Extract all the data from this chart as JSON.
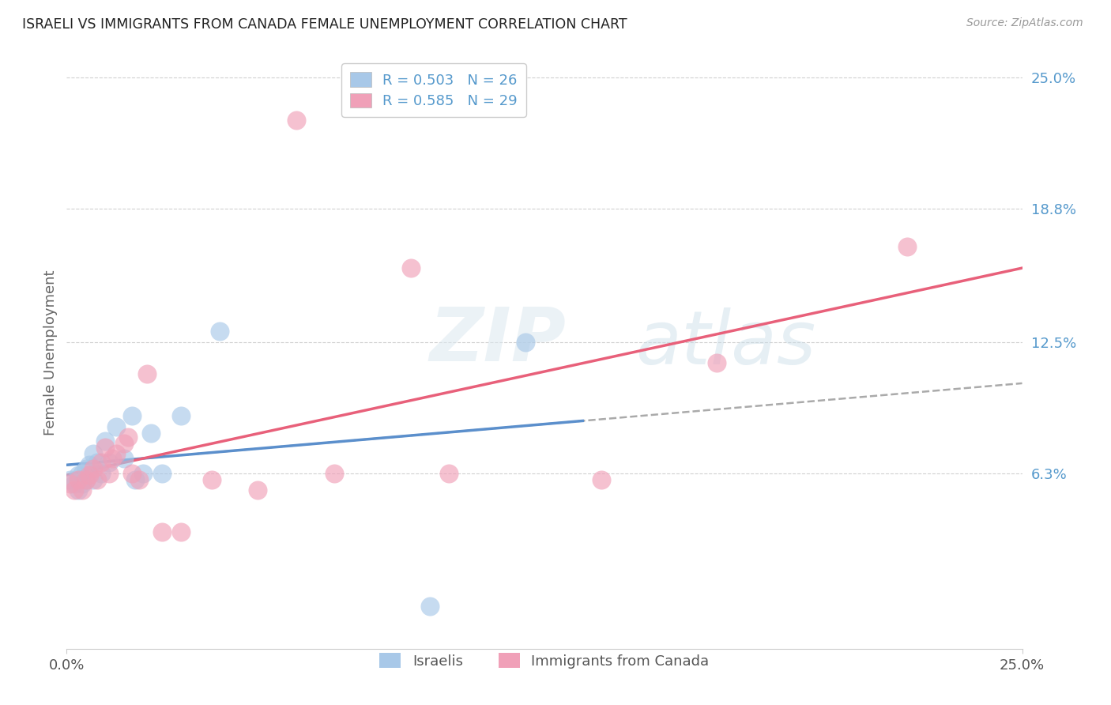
{
  "title": "ISRAELI VS IMMIGRANTS FROM CANADA FEMALE UNEMPLOYMENT CORRELATION CHART",
  "source": "Source: ZipAtlas.com",
  "ylabel": "Female Unemployment",
  "xlim": [
    0.0,
    0.25
  ],
  "ylim": [
    -0.02,
    0.26
  ],
  "xticks": [
    0.0,
    0.25
  ],
  "xtick_labels": [
    "0.0%",
    "25.0%"
  ],
  "yticks_right": [
    0.063,
    0.125,
    0.188,
    0.25
  ],
  "ytick_labels_right": [
    "6.3%",
    "12.5%",
    "18.8%",
    "25.0%"
  ],
  "hlines": [
    0.063,
    0.125,
    0.188,
    0.25
  ],
  "legend_entries": [
    {
      "label": "R = 0.503   N = 26",
      "color": "#aac4e8"
    },
    {
      "label": "R = 0.585   N = 29",
      "color": "#f4a0b0"
    }
  ],
  "legend_bottom": [
    {
      "label": "Israelis",
      "color": "#aac4e8"
    },
    {
      "label": "Immigrants from Canada",
      "color": "#f4a0b0"
    }
  ],
  "israelis_x": [
    0.001,
    0.002,
    0.003,
    0.003,
    0.004,
    0.004,
    0.005,
    0.005,
    0.006,
    0.007,
    0.007,
    0.008,
    0.009,
    0.01,
    0.011,
    0.013,
    0.015,
    0.017,
    0.018,
    0.02,
    0.022,
    0.025,
    0.03,
    0.04,
    0.095,
    0.12
  ],
  "israelis_y": [
    0.06,
    0.058,
    0.062,
    0.055,
    0.063,
    0.058,
    0.065,
    0.06,
    0.067,
    0.072,
    0.06,
    0.068,
    0.063,
    0.078,
    0.068,
    0.085,
    0.07,
    0.09,
    0.06,
    0.063,
    0.082,
    0.063,
    0.09,
    0.13,
    0.0,
    0.125
  ],
  "canada_x": [
    0.001,
    0.002,
    0.003,
    0.004,
    0.005,
    0.006,
    0.007,
    0.008,
    0.009,
    0.01,
    0.011,
    0.012,
    0.013,
    0.015,
    0.016,
    0.017,
    0.019,
    0.021,
    0.025,
    0.03,
    0.038,
    0.05,
    0.06,
    0.07,
    0.09,
    0.1,
    0.14,
    0.17,
    0.22
  ],
  "canada_y": [
    0.058,
    0.055,
    0.06,
    0.055,
    0.06,
    0.062,
    0.065,
    0.06,
    0.068,
    0.075,
    0.063,
    0.07,
    0.072,
    0.077,
    0.08,
    0.063,
    0.06,
    0.11,
    0.035,
    0.035,
    0.06,
    0.055,
    0.23,
    0.063,
    0.16,
    0.063,
    0.06,
    0.115,
    0.17
  ],
  "blue_line_color": "#5b8fcc",
  "pink_line_color": "#e8607a",
  "dash_line_color": "#aaaaaa",
  "scatter_blue": "#a8c8e8",
  "scatter_pink": "#f0a0b8",
  "background_color": "#ffffff",
  "watermark_zip": "ZIP",
  "watermark_atlas": "atlas"
}
